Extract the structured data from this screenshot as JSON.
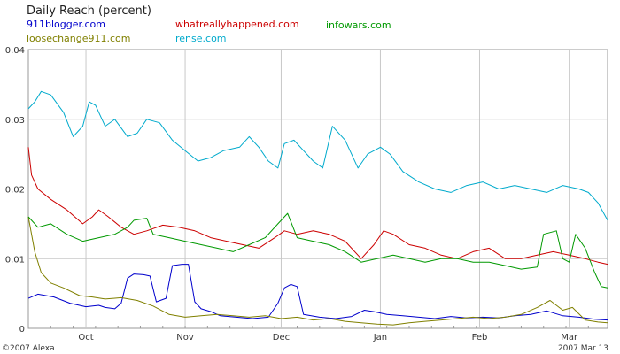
{
  "chart_data": {
    "type": "line",
    "title": "Daily Reach (percent)",
    "footer_left": "©2007 Alexa",
    "footer_right": "2007 Mar 13",
    "x_tick_labels": [
      "Oct",
      "Nov",
      "Dec",
      "Jan",
      "Feb",
      "Mar"
    ],
    "y_tick_labels": [
      "0",
      "0.01",
      "0.02",
      "0.03",
      "0.04"
    ],
    "ylim": [
      0,
      0.04
    ],
    "xlim": [
      "2006-09-13",
      "2007-03-13"
    ],
    "grid": true,
    "legend_position": "top",
    "series": [
      {
        "name": "911blogger.com",
        "color": "#0000cc",
        "points": [
          [
            "2006-09-13",
            0.0043
          ],
          [
            "2006-09-16",
            0.0049
          ],
          [
            "2006-09-21",
            0.0045
          ],
          [
            "2006-09-26",
            0.0036
          ],
          [
            "2006-10-01",
            0.0031
          ],
          [
            "2006-10-05",
            0.0033
          ],
          [
            "2006-10-07",
            0.003
          ],
          [
            "2006-10-10",
            0.0028
          ],
          [
            "2006-10-12",
            0.0036
          ],
          [
            "2006-10-14",
            0.0072
          ],
          [
            "2006-10-16",
            0.0078
          ],
          [
            "2006-10-19",
            0.0077
          ],
          [
            "2006-10-21",
            0.0075
          ],
          [
            "2006-10-23",
            0.0038
          ],
          [
            "2006-10-26",
            0.0043
          ],
          [
            "2006-10-28",
            0.009
          ],
          [
            "2006-10-31",
            0.0092
          ],
          [
            "2006-11-02",
            0.0092
          ],
          [
            "2006-11-04",
            0.0038
          ],
          [
            "2006-11-06",
            0.0028
          ],
          [
            "2006-11-09",
            0.0024
          ],
          [
            "2006-11-12",
            0.0018
          ],
          [
            "2006-11-17",
            0.0016
          ],
          [
            "2006-11-22",
            0.0014
          ],
          [
            "2006-11-27",
            0.0016
          ],
          [
            "2006-11-30",
            0.0036
          ],
          [
            "2006-12-02",
            0.0058
          ],
          [
            "2006-12-04",
            0.0063
          ],
          [
            "2006-12-06",
            0.006
          ],
          [
            "2006-12-08",
            0.002
          ],
          [
            "2006-12-13",
            0.0016
          ],
          [
            "2006-12-18",
            0.0014
          ],
          [
            "2006-12-23",
            0.0017
          ],
          [
            "2006-12-27",
            0.0026
          ],
          [
            "2006-12-30",
            0.0024
          ],
          [
            "2007-01-03",
            0.002
          ],
          [
            "2007-01-08",
            0.0018
          ],
          [
            "2007-01-13",
            0.0016
          ],
          [
            "2007-01-18",
            0.0014
          ],
          [
            "2007-01-23",
            0.0017
          ],
          [
            "2007-01-28",
            0.0015
          ],
          [
            "2007-02-02",
            0.0016
          ],
          [
            "2007-02-07",
            0.0015
          ],
          [
            "2007-02-12",
            0.0018
          ],
          [
            "2007-02-17",
            0.002
          ],
          [
            "2007-02-22",
            0.0025
          ],
          [
            "2007-02-27",
            0.0018
          ],
          [
            "2007-03-04",
            0.0016
          ],
          [
            "2007-03-09",
            0.0013
          ],
          [
            "2007-03-13",
            0.0012
          ]
        ]
      },
      {
        "name": "loosechange911.com",
        "color": "#808000",
        "points": [
          [
            "2006-09-13",
            0.016
          ],
          [
            "2006-09-15",
            0.011
          ],
          [
            "2006-09-17",
            0.008
          ],
          [
            "2006-09-20",
            0.0065
          ],
          [
            "2006-09-24",
            0.0058
          ],
          [
            "2006-09-29",
            0.0047
          ],
          [
            "2006-10-03",
            0.0045
          ],
          [
            "2006-10-07",
            0.0042
          ],
          [
            "2006-10-12",
            0.0044
          ],
          [
            "2006-10-17",
            0.004
          ],
          [
            "2006-10-22",
            0.0032
          ],
          [
            "2006-10-27",
            0.002
          ],
          [
            "2006-11-01",
            0.0016
          ],
          [
            "2006-11-06",
            0.0018
          ],
          [
            "2006-11-11",
            0.002
          ],
          [
            "2006-11-16",
            0.0018
          ],
          [
            "2006-11-21",
            0.0016
          ],
          [
            "2006-11-26",
            0.0018
          ],
          [
            "2006-12-01",
            0.0014
          ],
          [
            "2006-12-06",
            0.0016
          ],
          [
            "2006-12-11",
            0.0012
          ],
          [
            "2006-12-16",
            0.0014
          ],
          [
            "2006-12-21",
            0.001
          ],
          [
            "2006-12-26",
            0.0008
          ],
          [
            "2006-12-31",
            0.0006
          ],
          [
            "2007-01-05",
            0.0005
          ],
          [
            "2007-01-10",
            0.0008
          ],
          [
            "2007-01-15",
            0.001
          ],
          [
            "2007-01-20",
            0.0012
          ],
          [
            "2007-01-25",
            0.0014
          ],
          [
            "2007-01-30",
            0.0016
          ],
          [
            "2007-02-04",
            0.0014
          ],
          [
            "2007-02-09",
            0.0016
          ],
          [
            "2007-02-14",
            0.002
          ],
          [
            "2007-02-19",
            0.003
          ],
          [
            "2007-02-23",
            0.004
          ],
          [
            "2007-02-27",
            0.0026
          ],
          [
            "2007-03-02",
            0.003
          ],
          [
            "2007-03-06",
            0.0012
          ],
          [
            "2007-03-10",
            0.0009
          ],
          [
            "2007-03-13",
            0.0008
          ]
        ]
      },
      {
        "name": "whatreallyhappened.com",
        "color": "#cc0000",
        "points": [
          [
            "2006-09-13",
            0.026
          ],
          [
            "2006-09-14",
            0.022
          ],
          [
            "2006-09-16",
            0.02
          ],
          [
            "2006-09-20",
            0.0185
          ],
          [
            "2006-09-25",
            0.017
          ],
          [
            "2006-09-30",
            0.015
          ],
          [
            "2006-10-03",
            0.016
          ],
          [
            "2006-10-05",
            0.017
          ],
          [
            "2006-10-08",
            0.016
          ],
          [
            "2006-10-12",
            0.0145
          ],
          [
            "2006-10-16",
            0.0135
          ],
          [
            "2006-10-20",
            0.014
          ],
          [
            "2006-10-25",
            0.0148
          ],
          [
            "2006-10-30",
            0.0145
          ],
          [
            "2006-11-04",
            0.014
          ],
          [
            "2006-11-09",
            0.013
          ],
          [
            "2006-11-14",
            0.0125
          ],
          [
            "2006-11-19",
            0.012
          ],
          [
            "2006-11-24",
            0.0115
          ],
          [
            "2006-11-29",
            0.013
          ],
          [
            "2006-12-02",
            0.014
          ],
          [
            "2006-12-06",
            0.0135
          ],
          [
            "2006-12-11",
            0.014
          ],
          [
            "2006-12-16",
            0.0135
          ],
          [
            "2006-12-21",
            0.0125
          ],
          [
            "2006-12-26",
            0.01
          ],
          [
            "2006-12-30",
            0.012
          ],
          [
            "2007-01-02",
            0.014
          ],
          [
            "2007-01-05",
            0.0135
          ],
          [
            "2007-01-10",
            0.012
          ],
          [
            "2007-01-15",
            0.0115
          ],
          [
            "2007-01-20",
            0.0105
          ],
          [
            "2007-01-25",
            0.01
          ],
          [
            "2007-01-30",
            0.011
          ],
          [
            "2007-02-04",
            0.0115
          ],
          [
            "2007-02-09",
            0.01
          ],
          [
            "2007-02-14",
            0.01
          ],
          [
            "2007-02-19",
            0.0105
          ],
          [
            "2007-02-24",
            0.011
          ],
          [
            "2007-03-01",
            0.0105
          ],
          [
            "2007-03-06",
            0.01
          ],
          [
            "2007-03-10",
            0.0095
          ],
          [
            "2007-03-13",
            0.0092
          ]
        ]
      },
      {
        "name": "rense.com",
        "color": "#00aacc",
        "points": [
          [
            "2006-09-13",
            0.0315
          ],
          [
            "2006-09-15",
            0.0325
          ],
          [
            "2006-09-17",
            0.034
          ],
          [
            "2006-09-20",
            0.0335
          ],
          [
            "2006-09-24",
            0.031
          ],
          [
            "2006-09-27",
            0.0275
          ],
          [
            "2006-09-30",
            0.029
          ],
          [
            "2006-10-02",
            0.0325
          ],
          [
            "2006-10-04",
            0.032
          ],
          [
            "2006-10-07",
            0.029
          ],
          [
            "2006-10-10",
            0.03
          ],
          [
            "2006-10-14",
            0.0275
          ],
          [
            "2006-10-17",
            0.028
          ],
          [
            "2006-10-20",
            0.03
          ],
          [
            "2006-10-24",
            0.0295
          ],
          [
            "2006-10-28",
            0.027
          ],
          [
            "2006-11-01",
            0.0255
          ],
          [
            "2006-11-05",
            0.024
          ],
          [
            "2006-11-09",
            0.0245
          ],
          [
            "2006-11-13",
            0.0255
          ],
          [
            "2006-11-18",
            0.026
          ],
          [
            "2006-11-21",
            0.0275
          ],
          [
            "2006-11-24",
            0.026
          ],
          [
            "2006-11-27",
            0.024
          ],
          [
            "2006-11-30",
            0.023
          ],
          [
            "2006-12-02",
            0.0265
          ],
          [
            "2006-12-05",
            0.027
          ],
          [
            "2006-12-08",
            0.0255
          ],
          [
            "2006-12-11",
            0.024
          ],
          [
            "2006-12-14",
            0.023
          ],
          [
            "2006-12-17",
            0.029
          ],
          [
            "2006-12-21",
            0.027
          ],
          [
            "2006-12-25",
            0.023
          ],
          [
            "2006-12-28",
            0.025
          ],
          [
            "2007-01-01",
            0.026
          ],
          [
            "2007-01-04",
            0.025
          ],
          [
            "2007-01-08",
            0.0225
          ],
          [
            "2007-01-13",
            0.021
          ],
          [
            "2007-01-18",
            0.02
          ],
          [
            "2007-01-23",
            0.0195
          ],
          [
            "2007-01-28",
            0.0205
          ],
          [
            "2007-02-02",
            0.021
          ],
          [
            "2007-02-07",
            0.02
          ],
          [
            "2007-02-12",
            0.0205
          ],
          [
            "2007-02-17",
            0.02
          ],
          [
            "2007-02-22",
            0.0195
          ],
          [
            "2007-02-27",
            0.0205
          ],
          [
            "2007-03-04",
            0.02
          ],
          [
            "2007-03-07",
            0.0195
          ],
          [
            "2007-03-10",
            0.018
          ],
          [
            "2007-03-13",
            0.0155
          ]
        ]
      },
      {
        "name": "infowars.com",
        "color": "#009900",
        "points": [
          [
            "2006-09-13",
            0.016
          ],
          [
            "2006-09-16",
            0.0145
          ],
          [
            "2006-09-20",
            0.015
          ],
          [
            "2006-09-25",
            0.0135
          ],
          [
            "2006-09-30",
            0.0125
          ],
          [
            "2006-10-05",
            0.013
          ],
          [
            "2006-10-10",
            0.0135
          ],
          [
            "2006-10-14",
            0.0145
          ],
          [
            "2006-10-16",
            0.0155
          ],
          [
            "2006-10-20",
            0.0158
          ],
          [
            "2006-10-22",
            0.0135
          ],
          [
            "2006-10-27",
            0.013
          ],
          [
            "2006-11-01",
            0.0125
          ],
          [
            "2006-11-06",
            0.012
          ],
          [
            "2006-11-11",
            0.0115
          ],
          [
            "2006-11-16",
            0.011
          ],
          [
            "2006-11-21",
            0.012
          ],
          [
            "2006-11-26",
            0.013
          ],
          [
            "2006-11-30",
            0.015
          ],
          [
            "2006-12-03",
            0.0165
          ],
          [
            "2006-12-06",
            0.013
          ],
          [
            "2006-12-11",
            0.0125
          ],
          [
            "2006-12-16",
            0.012
          ],
          [
            "2006-12-21",
            0.011
          ],
          [
            "2006-12-26",
            0.0095
          ],
          [
            "2006-12-31",
            0.01
          ],
          [
            "2007-01-05",
            0.0105
          ],
          [
            "2007-01-10",
            0.01
          ],
          [
            "2007-01-15",
            0.0095
          ],
          [
            "2007-01-20",
            0.01
          ],
          [
            "2007-01-25",
            0.01
          ],
          [
            "2007-01-30",
            0.0095
          ],
          [
            "2007-02-04",
            0.0095
          ],
          [
            "2007-02-09",
            0.009
          ],
          [
            "2007-02-14",
            0.0085
          ],
          [
            "2007-02-19",
            0.0088
          ],
          [
            "2007-02-21",
            0.0135
          ],
          [
            "2007-02-25",
            0.014
          ],
          [
            "2007-02-27",
            0.01
          ],
          [
            "2007-03-01",
            0.0095
          ],
          [
            "2007-03-03",
            0.0135
          ],
          [
            "2007-03-06",
            0.0115
          ],
          [
            "2007-03-09",
            0.008
          ],
          [
            "2007-03-11",
            0.006
          ],
          [
            "2007-03-13",
            0.0058
          ]
        ]
      }
    ]
  }
}
